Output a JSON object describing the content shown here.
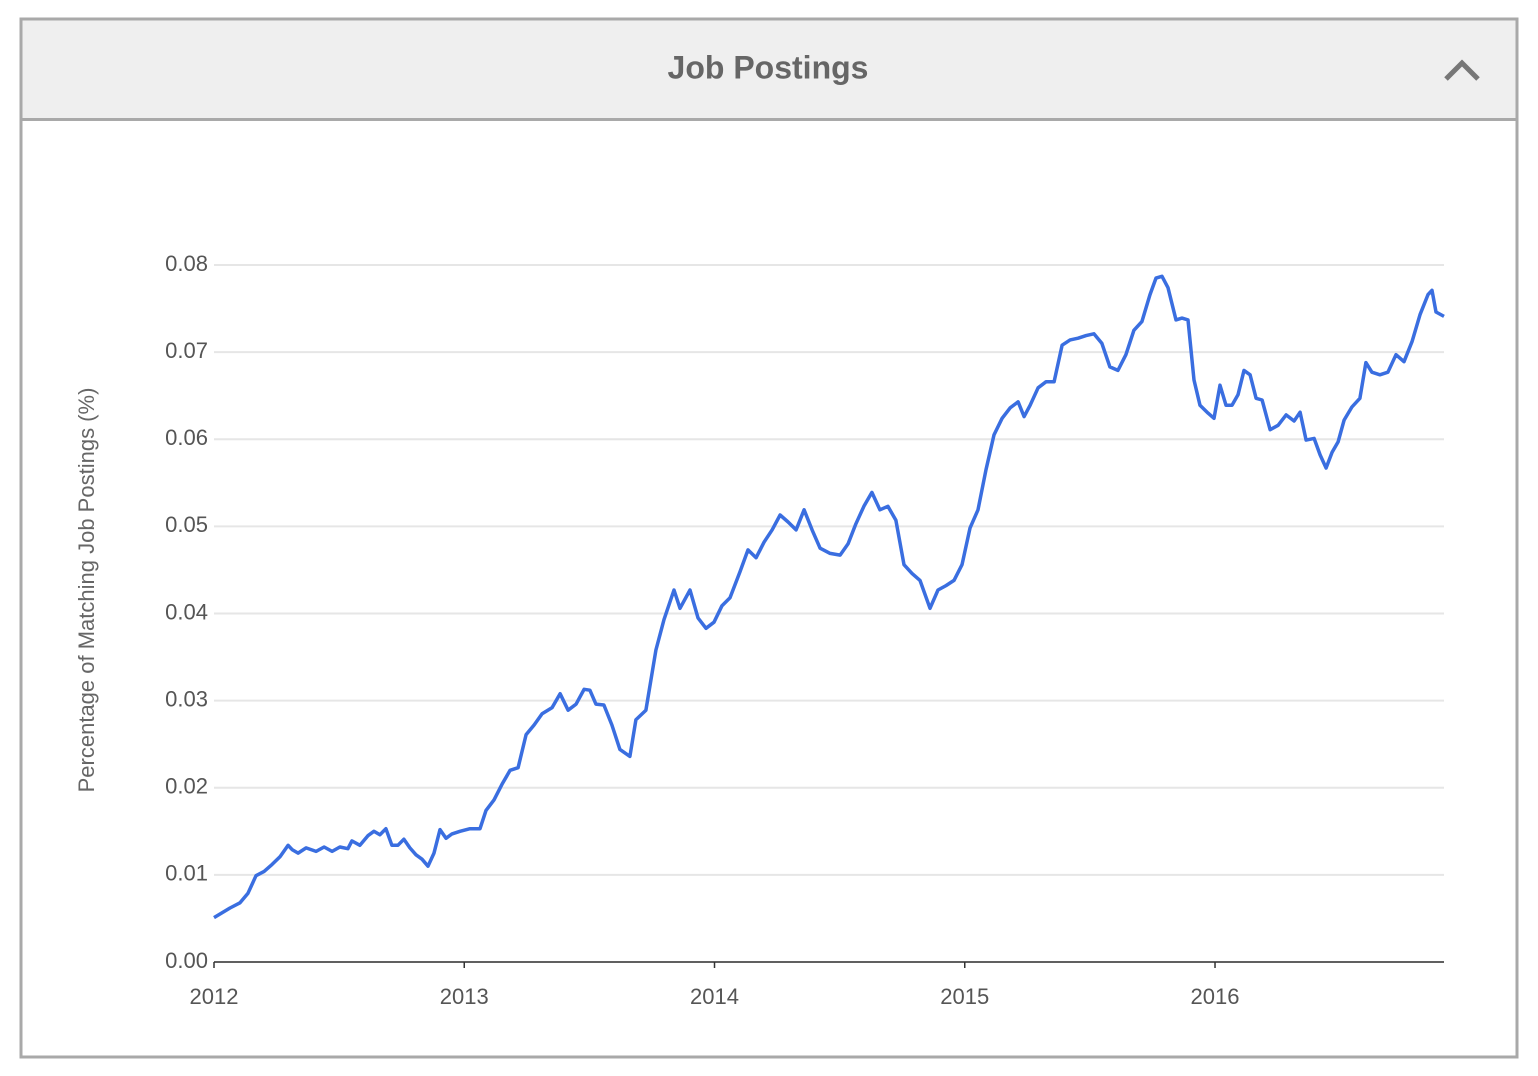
{
  "chart_data": {
    "type": "line",
    "title": "Job Postings",
    "ylabel": "Percentage of Matching Job Postings (%)",
    "color": "#3a6ee0",
    "grid": true,
    "xlim": [
      2012,
      2016.915
    ],
    "xticks": [
      2012,
      2013,
      2014,
      2015,
      2016
    ],
    "ylim": [
      0,
      0.08
    ],
    "yticks": [
      {
        "value": 0,
        "label": "0.00"
      },
      0.01,
      0.02,
      0.03,
      0.04,
      0.05,
      0.06,
      0.07,
      0.08
    ],
    "x": [
      2012.0,
      2012.064,
      2012.104,
      2012.136,
      2012.168,
      2012.2,
      2012.232,
      2012.264,
      2012.296,
      2012.312,
      2012.336,
      2012.368,
      2012.408,
      2012.44,
      2012.472,
      2012.503,
      2012.535,
      2012.551,
      2012.583,
      2012.615,
      2012.639,
      2012.663,
      2012.687,
      2012.711,
      2012.735,
      2012.759,
      2012.783,
      2012.807,
      2012.831,
      2012.855,
      2012.879,
      2012.903,
      2012.927,
      2012.951,
      2012.983,
      2013.023,
      2013.063,
      2013.087,
      2013.119,
      2013.151,
      2013.183,
      2013.215,
      2013.247,
      2013.279,
      2013.311,
      2013.351,
      2013.383,
      2013.415,
      2013.447,
      2013.479,
      2013.502,
      2013.526,
      2013.558,
      2013.59,
      2013.622,
      2013.662,
      2013.686,
      2013.726,
      2013.766,
      2013.798,
      2013.838,
      2013.862,
      2013.902,
      2013.934,
      2013.966,
      2013.998,
      2014.03,
      2014.062,
      2014.102,
      2014.134,
      2014.166,
      2014.198,
      2014.23,
      2014.262,
      2014.294,
      2014.326,
      2014.358,
      2014.39,
      2014.422,
      2014.462,
      2014.502,
      2014.534,
      2014.565,
      2014.597,
      2014.629,
      2014.661,
      2014.693,
      2014.725,
      2014.757,
      2014.789,
      2014.821,
      2014.861,
      2014.893,
      2014.925,
      2014.957,
      2014.989,
      2015.021,
      2015.053,
      2015.085,
      2015.117,
      2015.149,
      2015.181,
      2015.213,
      2015.237,
      2015.261,
      2015.293,
      2015.325,
      2015.357,
      2015.389,
      2015.421,
      2015.453,
      2015.485,
      2015.516,
      2015.548,
      2015.58,
      2015.612,
      2015.644,
      2015.676,
      2015.708,
      2015.74,
      2015.764,
      2015.788,
      2015.812,
      2015.844,
      2015.868,
      2015.892,
      2015.916,
      2015.94,
      2015.972,
      2015.996,
      2016.02,
      2016.044,
      2016.068,
      2016.092,
      2016.116,
      2016.14,
      2016.164,
      2016.188,
      2016.22,
      2016.252,
      2016.284,
      2016.316,
      2016.34,
      2016.364,
      2016.396,
      2016.42,
      2016.444,
      2016.468,
      2016.492,
      2016.516,
      2016.547,
      2016.579,
      2016.603,
      2016.627,
      2016.659,
      2016.691,
      2016.723,
      2016.755,
      2016.787,
      2016.819,
      2016.851,
      2016.867,
      2016.883,
      2016.915
    ],
    "values": [
      0.0051,
      0.0062,
      0.0068,
      0.0079,
      0.0099,
      0.0104,
      0.0112,
      0.0121,
      0.0134,
      0.0129,
      0.0125,
      0.0131,
      0.0127,
      0.0132,
      0.0127,
      0.0132,
      0.013,
      0.0139,
      0.0134,
      0.0145,
      0.015,
      0.0146,
      0.0153,
      0.0134,
      0.0134,
      0.0141,
      0.0131,
      0.0123,
      0.0118,
      0.011,
      0.0125,
      0.0152,
      0.0142,
      0.0147,
      0.015,
      0.0153,
      0.0153,
      0.0174,
      0.0186,
      0.0204,
      0.022,
      0.0223,
      0.0261,
      0.0272,
      0.0285,
      0.0292,
      0.0308,
      0.0289,
      0.0296,
      0.0313,
      0.0312,
      0.0296,
      0.0295,
      0.0272,
      0.0244,
      0.0236,
      0.0278,
      0.0289,
      0.0358,
      0.0393,
      0.0427,
      0.0406,
      0.0427,
      0.0395,
      0.0383,
      0.039,
      0.0409,
      0.0418,
      0.0448,
      0.0473,
      0.0464,
      0.0482,
      0.0496,
      0.0513,
      0.0505,
      0.0496,
      0.0519,
      0.0496,
      0.0475,
      0.0469,
      0.0467,
      0.048,
      0.0503,
      0.0523,
      0.0539,
      0.0519,
      0.0523,
      0.0507,
      0.0456,
      0.0446,
      0.0438,
      0.0406,
      0.0427,
      0.0432,
      0.0438,
      0.0456,
      0.0498,
      0.0519,
      0.0565,
      0.0605,
      0.0624,
      0.0636,
      0.0643,
      0.0626,
      0.0639,
      0.0659,
      0.0666,
      0.0666,
      0.0708,
      0.0714,
      0.0716,
      0.0719,
      0.0721,
      0.071,
      0.0683,
      0.0679,
      0.0697,
      0.0725,
      0.0735,
      0.0766,
      0.0785,
      0.0787,
      0.0774,
      0.0737,
      0.0739,
      0.0737,
      0.0668,
      0.0639,
      0.063,
      0.0624,
      0.0662,
      0.0639,
      0.0639,
      0.0651,
      0.0679,
      0.0674,
      0.0647,
      0.0645,
      0.0611,
      0.0616,
      0.0628,
      0.0621,
      0.0631,
      0.0599,
      0.0601,
      0.0582,
      0.0567,
      0.0585,
      0.0597,
      0.0622,
      0.0637,
      0.0647,
      0.0688,
      0.0677,
      0.0674,
      0.0677,
      0.0697,
      0.0689,
      0.0712,
      0.0743,
      0.0766,
      0.0771,
      0.0746,
      0.0741
    ]
  }
}
